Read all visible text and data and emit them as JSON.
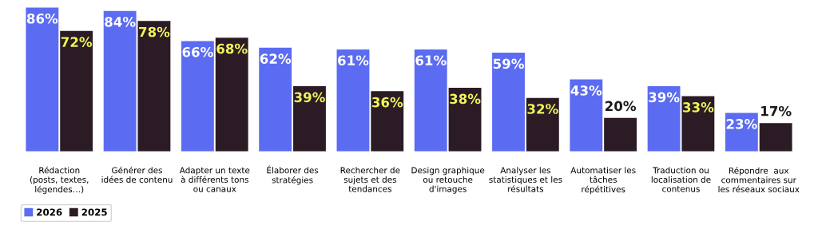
{
  "chart_data": {
    "type": "bar",
    "categories": [
      "Rédaction\n(posts, textes,\nlégendes…)",
      "Générer des\nidées de contenu",
      "Adapter un texte\nà différents tons\nou canaux",
      "Élaborer des\nstratégies",
      "Rechercher de\nsujets et des\ntendances",
      "Design graphique\nou retouche\nd'images",
      "Analyser les\nstatistiques et les\nrésultats",
      "Automatiser les\ntâches\nrépétitives",
      "Traduction ou\nlocalisation de\ncontenus",
      "Répondre  aux\ncommentaires sur\nles réseaux sociaux"
    ],
    "series": [
      {
        "name": "2026",
        "color": "#5b6cf2",
        "values": [
          86,
          84,
          66,
          62,
          61,
          61,
          59,
          43,
          39,
          23
        ],
        "value_labels": [
          "86%",
          "84%",
          "66%",
          "62%",
          "61%",
          "61%",
          "59%",
          "43%",
          "39%",
          "23%"
        ]
      },
      {
        "name": "2025",
        "color": "#2b1b24",
        "values": [
          72,
          78,
          68,
          39,
          36,
          38,
          32,
          20,
          33,
          17
        ],
        "value_labels": [
          "72%",
          "78%",
          "68%",
          "39%",
          "36%",
          "38%",
          "32%",
          "20%",
          "33%",
          "17%"
        ]
      }
    ],
    "legend": "bottom left"
  }
}
